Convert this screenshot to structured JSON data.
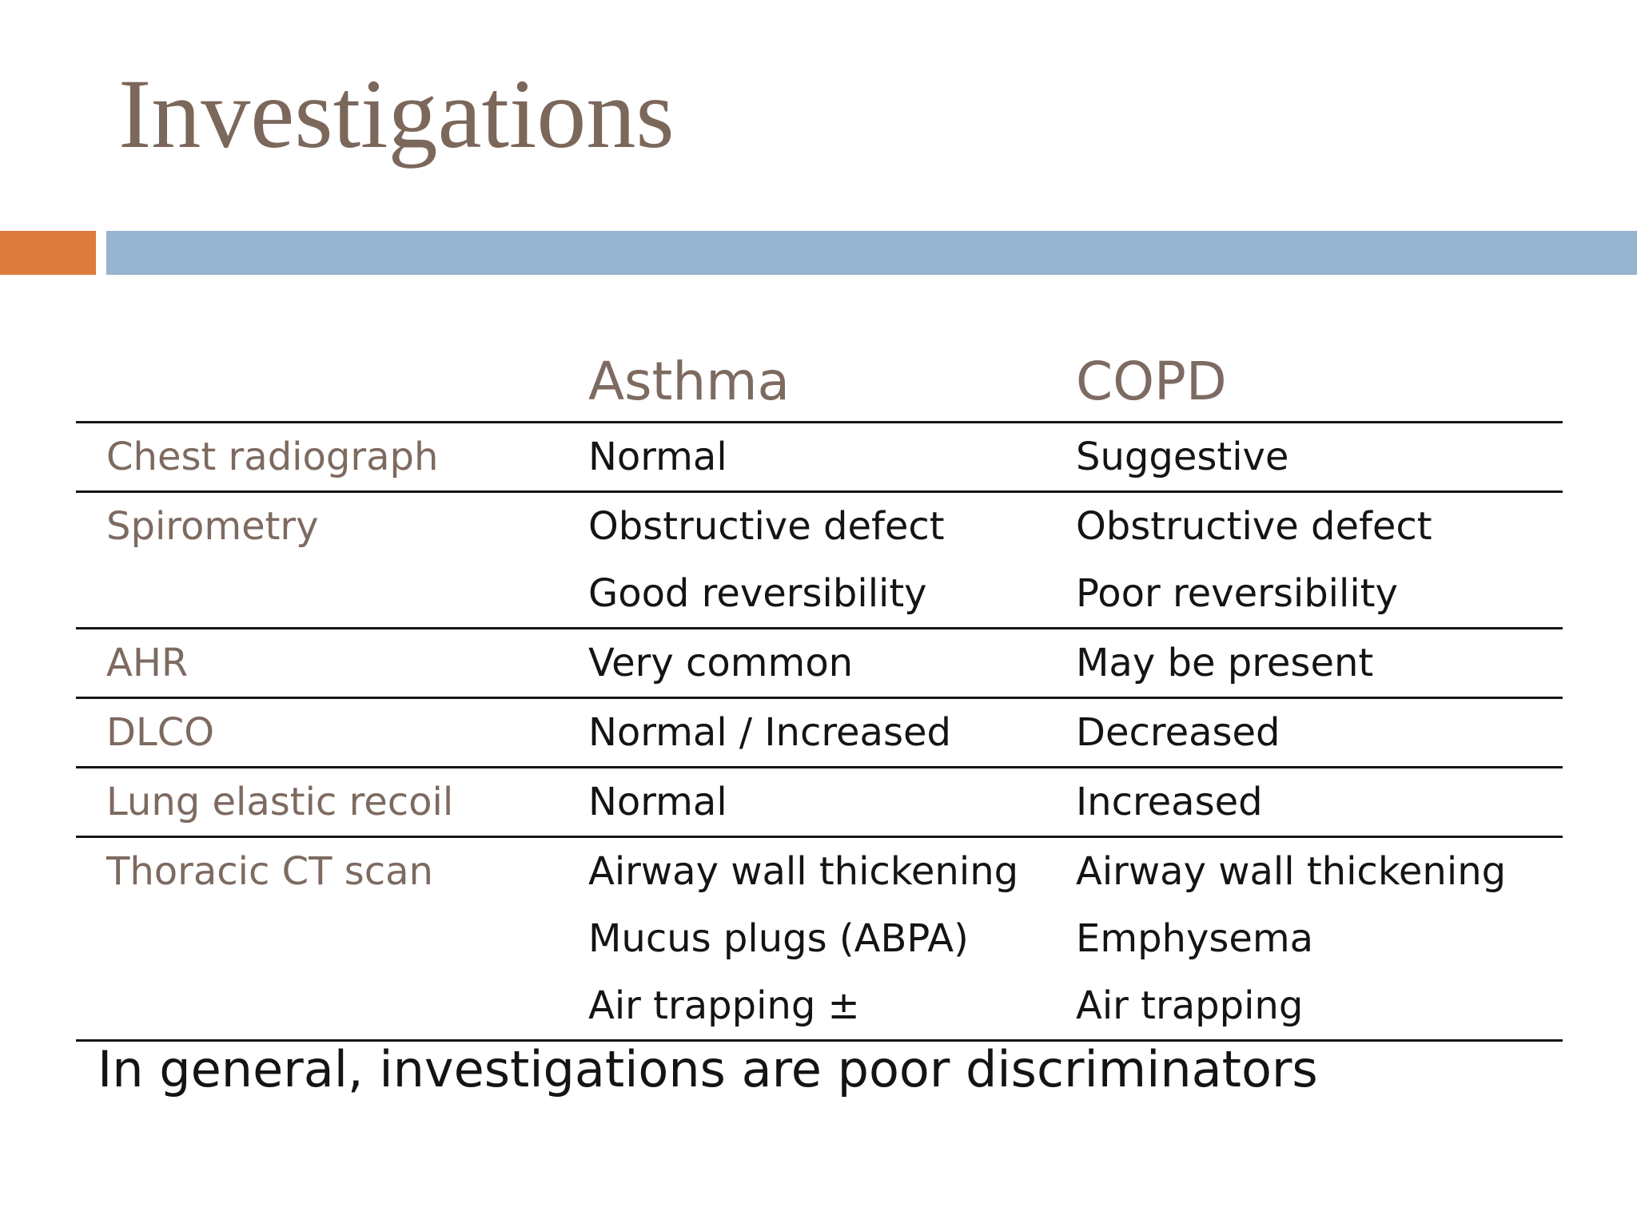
{
  "slide": {
    "title": "Investigations",
    "footer_note": "In general, investigations are poor discriminators"
  },
  "colors": {
    "title-brown": "#7C675B",
    "label-brown": "#7D6A60",
    "accent-orange": "#DC7B3B",
    "accent-blue": "#96B3D0",
    "body-text": "#141414",
    "table-line": "#151515"
  },
  "table": {
    "columns": [
      "",
      "Asthma",
      "COPD"
    ],
    "rows": [
      {
        "label": "Chest radiograph",
        "asthma": [
          "Normal"
        ],
        "copd": [
          "Suggestive"
        ]
      },
      {
        "label": "Spirometry",
        "asthma": [
          "Obstructive defect",
          "Good reversibility"
        ],
        "copd": [
          "Obstructive defect",
          "Poor reversibility"
        ]
      },
      {
        "label": "AHR",
        "asthma": [
          "Very common"
        ],
        "copd": [
          "May be present"
        ]
      },
      {
        "label": "DLCO",
        "asthma": [
          "Normal / Increased"
        ],
        "copd": [
          "Decreased"
        ]
      },
      {
        "label": "Lung elastic recoil",
        "asthma": [
          "Normal"
        ],
        "copd": [
          "Increased"
        ]
      },
      {
        "label": "Thoracic CT scan",
        "asthma": [
          "Airway wall thickening",
          "Mucus plugs (ABPA)",
          "Air trapping ±"
        ],
        "copd": [
          "Airway wall thickening",
          "Emphysema",
          "Air trapping"
        ]
      }
    ]
  }
}
